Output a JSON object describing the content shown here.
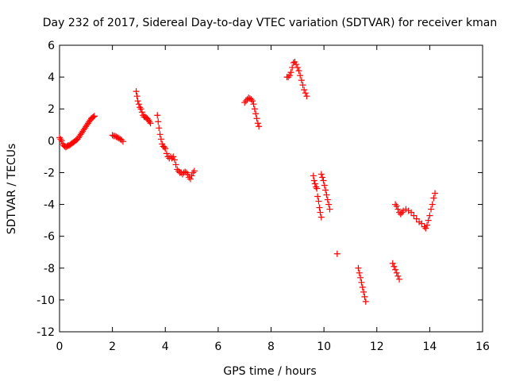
{
  "chart_data": {
    "type": "scatter",
    "title": "Day 232 of 2017, Sidereal Day-to-day VTEC variation (SDTVAR) for receiver kman",
    "xlabel": "GPS time / hours",
    "ylabel": "SDTVAR / TECUs",
    "xlim": [
      0,
      16
    ],
    "ylim": [
      -12,
      6
    ],
    "xticks": [
      0,
      2,
      4,
      6,
      8,
      10,
      12,
      14,
      16
    ],
    "yticks": [
      -12,
      -10,
      -8,
      -6,
      -4,
      -2,
      0,
      2,
      4,
      6
    ],
    "grid": false,
    "marker": "+",
    "color": "#ff0000",
    "series": [
      {
        "name": "SDTVAR",
        "x": [
          0.0,
          0.04,
          0.08,
          0.12,
          0.16,
          0.2,
          0.24,
          0.28,
          0.32,
          0.36,
          0.4,
          0.44,
          0.48,
          0.52,
          0.56,
          0.6,
          0.64,
          0.68,
          0.72,
          0.76,
          0.8,
          0.84,
          0.88,
          0.92,
          0.96,
          1.0,
          1.04,
          1.08,
          1.12,
          1.16,
          1.2,
          1.24,
          1.28,
          1.32,
          2.0,
          2.05,
          2.1,
          2.15,
          2.2,
          2.25,
          2.3,
          2.35,
          2.4,
          2.9,
          2.93,
          2.96,
          3.0,
          3.04,
          3.08,
          3.12,
          3.16,
          3.2,
          3.24,
          3.28,
          3.32,
          3.36,
          3.4,
          3.44,
          3.7,
          3.73,
          3.76,
          3.8,
          3.84,
          3.88,
          3.92,
          3.96,
          4.0,
          4.05,
          4.1,
          4.15,
          4.2,
          4.25,
          4.3,
          4.35,
          4.4,
          4.45,
          4.5,
          4.55,
          4.6,
          4.65,
          4.7,
          4.75,
          4.8,
          4.85,
          4.9,
          4.95,
          5.0,
          5.05,
          5.1,
          7.0,
          7.05,
          7.1,
          7.15,
          7.2,
          7.25,
          7.3,
          7.34,
          7.38,
          7.42,
          7.46,
          7.5,
          7.54,
          8.6,
          8.65,
          8.7,
          8.75,
          8.8,
          8.85,
          8.9,
          8.95,
          9.0,
          9.05,
          9.1,
          9.15,
          9.2,
          9.25,
          9.3,
          9.35,
          9.6,
          9.63,
          9.66,
          9.7,
          9.73,
          9.76,
          9.8,
          9.83,
          9.86,
          9.9,
          9.9,
          9.94,
          9.98,
          10.02,
          10.06,
          10.1,
          10.14,
          10.18,
          10.22,
          10.5,
          11.3,
          11.34,
          11.38,
          11.42,
          11.46,
          11.5,
          11.54,
          11.58,
          12.6,
          12.65,
          12.7,
          12.75,
          12.8,
          12.85,
          12.7,
          12.75,
          12.8,
          12.85,
          12.9,
          12.95,
          13.0,
          13.1,
          13.2,
          13.3,
          13.4,
          13.5,
          13.6,
          13.7,
          13.8,
          13.85,
          13.9,
          13.95,
          14.0,
          14.05,
          14.1,
          14.15,
          14.2
        ],
        "y": [
          0.2,
          0.1,
          0.0,
          -0.2,
          -0.3,
          -0.35,
          -0.4,
          -0.35,
          -0.3,
          -0.3,
          -0.25,
          -0.2,
          -0.15,
          -0.1,
          -0.05,
          0.0,
          0.05,
          0.1,
          0.2,
          0.3,
          0.4,
          0.5,
          0.6,
          0.7,
          0.8,
          0.9,
          1.0,
          1.1,
          1.2,
          1.3,
          1.4,
          1.45,
          1.5,
          1.55,
          0.35,
          0.3,
          0.3,
          0.25,
          0.2,
          0.15,
          0.1,
          0.05,
          -0.05,
          3.1,
          2.8,
          2.5,
          2.3,
          2.1,
          2.0,
          1.8,
          1.6,
          1.5,
          1.5,
          1.45,
          1.4,
          1.3,
          1.2,
          1.1,
          1.6,
          1.2,
          0.8,
          0.4,
          0.1,
          -0.2,
          -0.35,
          -0.4,
          -0.5,
          -0.8,
          -1.0,
          -1.1,
          -1.0,
          -1.1,
          -1.0,
          -1.2,
          -1.5,
          -1.8,
          -1.9,
          -2.0,
          -2.0,
          -2.1,
          -2.0,
          -1.95,
          -2.0,
          -2.1,
          -2.3,
          -2.4,
          -2.2,
          -2.0,
          -1.9,
          2.4,
          2.5,
          2.6,
          2.7,
          2.65,
          2.6,
          2.5,
          2.3,
          2.0,
          1.7,
          1.4,
          1.1,
          0.9,
          4.0,
          4.0,
          4.1,
          4.3,
          4.6,
          4.9,
          4.95,
          4.8,
          4.6,
          4.4,
          4.1,
          3.8,
          3.5,
          3.2,
          3.0,
          2.8,
          -2.2,
          -2.5,
          -2.7,
          -2.9,
          -3.0,
          -3.5,
          -3.8,
          -4.2,
          -4.5,
          -4.8,
          -2.1,
          -2.3,
          -2.5,
          -2.8,
          -3.1,
          -3.4,
          -3.7,
          -4.0,
          -4.3,
          -7.1,
          -8.0,
          -8.3,
          -8.6,
          -8.9,
          -9.2,
          -9.5,
          -9.8,
          -10.1,
          -7.7,
          -7.9,
          -8.1,
          -8.3,
          -8.5,
          -8.7,
          -4.0,
          -4.1,
          -4.3,
          -4.5,
          -4.6,
          -4.5,
          -4.4,
          -4.3,
          -4.4,
          -4.5,
          -4.7,
          -4.9,
          -5.1,
          -5.2,
          -5.4,
          -5.5,
          -5.3,
          -5.0,
          -4.7,
          -4.3,
          -4.0,
          -3.6,
          -3.3
        ]
      }
    ]
  }
}
